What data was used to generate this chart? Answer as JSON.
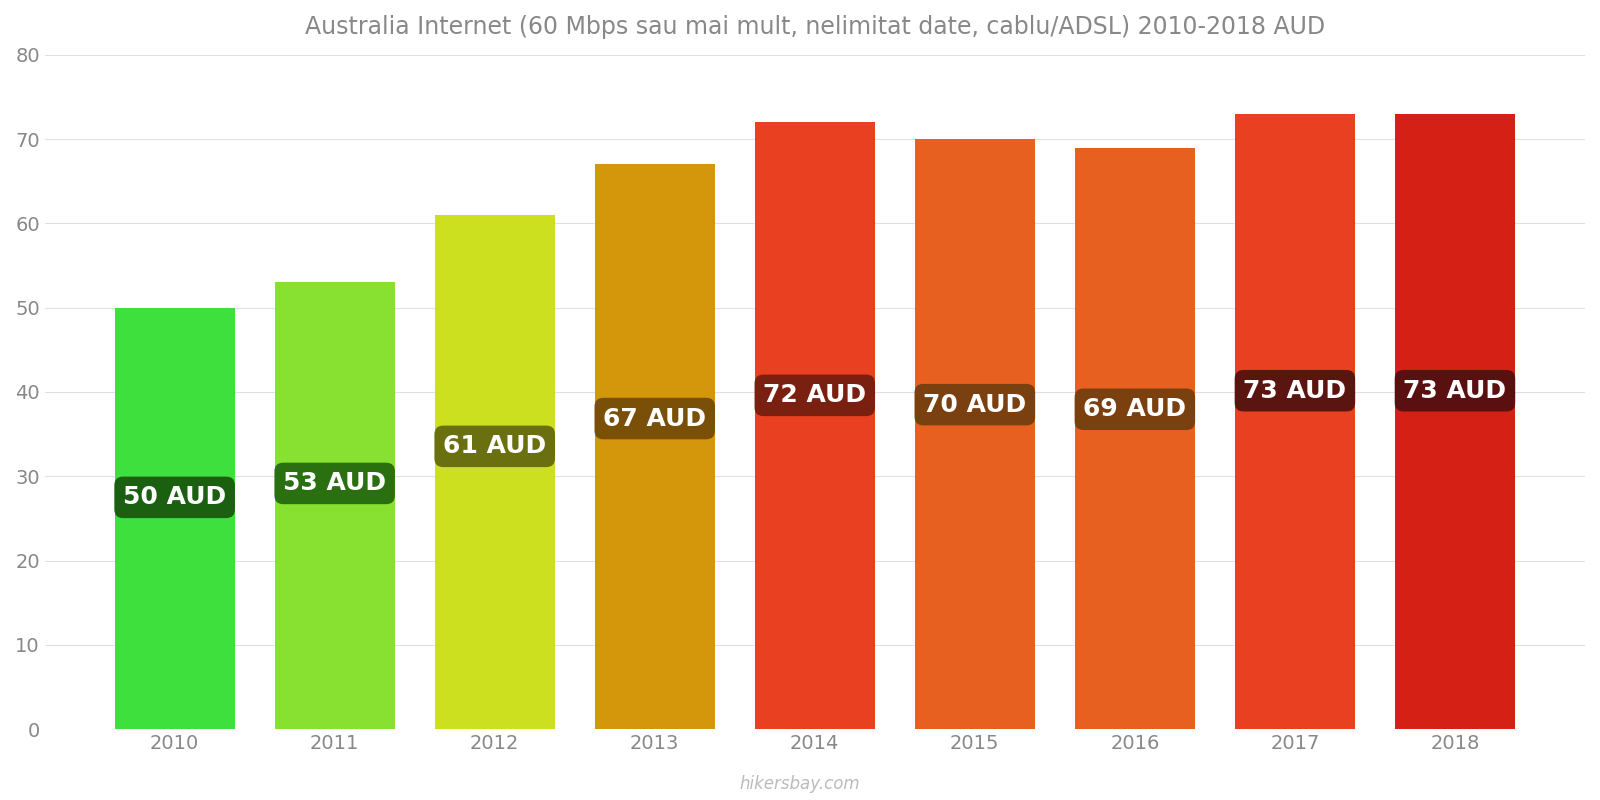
{
  "years": [
    2010,
    2011,
    2012,
    2013,
    2014,
    2015,
    2016,
    2017,
    2018
  ],
  "values": [
    50,
    53,
    61,
    67,
    72,
    70,
    69,
    73,
    73
  ],
  "bar_colors": [
    "#3de03d",
    "#88e030",
    "#cce020",
    "#d4960a",
    "#e84020",
    "#e86020",
    "#e86020",
    "#e84020",
    "#d42015"
  ],
  "label_bg_colors": [
    "#1a6010",
    "#2a7010",
    "#6a7010",
    "#7a5008",
    "#7a2010",
    "#7a4010",
    "#7a4010",
    "#5a1510",
    "#5a1010"
  ],
  "labels": [
    "50 AUD",
    "53 AUD",
    "61 AUD",
    "67 AUD",
    "72 AUD",
    "70 AUD",
    "69 AUD",
    "73 AUD",
    "73 AUD"
  ],
  "title": "Australia Internet (60 Mbps sau mai mult, nelimitat date, cablu/ADSL) 2010-2018 AUD",
  "ylim": [
    0,
    80
  ],
  "yticks": [
    0,
    10,
    20,
    30,
    40,
    50,
    60,
    70,
    80
  ],
  "background_color": "#ffffff",
  "label_text_color": "#ffffff",
  "watermark": "hikersbay.com",
  "title_fontsize": 17,
  "label_fontsize": 18,
  "tick_fontsize": 14,
  "bar_width": 0.75
}
